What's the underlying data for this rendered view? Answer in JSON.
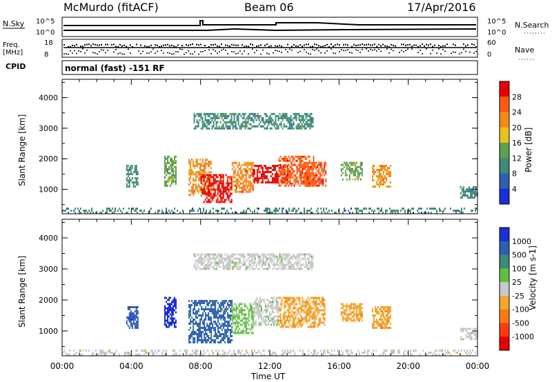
{
  "header": {
    "station": "McMurdo (fitACF)",
    "beam": "Beam 06",
    "date": "17/Apr/2016"
  },
  "top_panels": {
    "nsky_label": "N.Sky",
    "nsearch_label": "N.Search",
    "noise_ticks": [
      "10^5",
      "10^0"
    ],
    "freq_label_1": "Freq.",
    "freq_label_2": "[MHz]",
    "freq_ticks": [
      "18",
      "8"
    ],
    "nave_label": "Nave",
    "nave_ticks": [
      "60",
      "0"
    ],
    "cpid_label": "CPID",
    "cpid_text": "normal (fast) -151 RF"
  },
  "colors": {
    "power_scale": [
      "#1a2fd6",
      "#2e5fb0",
      "#3f8a78",
      "#5fa050",
      "#e8c21c",
      "#f28a18",
      "#ff5a10",
      "#e80000"
    ],
    "velocity_scale": [
      "#1a2fd6",
      "#2e5fb0",
      "#3f8a78",
      "#5fc040",
      "#c8c8c8",
      "#f2a830",
      "#ff7a10",
      "#ff3a10",
      "#e80000"
    ]
  },
  "chart_data": [
    {
      "type": "heatmap",
      "title": "",
      "xlabel": "Time UT",
      "ylabel": "Slant Range [km]",
      "x_ticks": [
        "00:00",
        "04:00",
        "08:00",
        "12:00",
        "16:00",
        "20:00",
        "00:00"
      ],
      "y_ticks": [
        "1000",
        "2000",
        "3000",
        "4000"
      ],
      "xlim_hours": [
        0,
        24
      ],
      "ylim_km": [
        200,
        4600
      ],
      "colorbar": {
        "label": "Power [dB]",
        "ticks": [
          "4",
          "8",
          "12",
          "16",
          "20",
          "24",
          "28"
        ],
        "range": [
          0,
          30
        ]
      },
      "regions": [
        {
          "t0": 0.0,
          "t1": 24.0,
          "r0": 200,
          "r1": 400,
          "value": 8
        },
        {
          "t0": 3.7,
          "t1": 4.4,
          "r0": 1100,
          "r1": 1800,
          "value": 10
        },
        {
          "t0": 5.9,
          "t1": 6.6,
          "r0": 1100,
          "r1": 2100,
          "value": 12
        },
        {
          "t0": 7.3,
          "t1": 8.6,
          "r0": 800,
          "r1": 2000,
          "value": 20
        },
        {
          "t0": 8.0,
          "t1": 9.8,
          "r0": 600,
          "r1": 1500,
          "value": 28
        },
        {
          "t0": 9.8,
          "t1": 11.0,
          "r0": 900,
          "r1": 1900,
          "value": 22
        },
        {
          "t0": 11.0,
          "t1": 13.0,
          "r0": 1200,
          "r1": 1800,
          "value": 28
        },
        {
          "t0": 12.5,
          "t1": 14.5,
          "r0": 1100,
          "r1": 2100,
          "value": 24
        },
        {
          "t0": 14.0,
          "t1": 15.2,
          "r0": 1100,
          "r1": 1900,
          "value": 26
        },
        {
          "t0": 16.1,
          "t1": 17.3,
          "r0": 1300,
          "r1": 1900,
          "value": 14
        },
        {
          "t0": 17.9,
          "t1": 19.0,
          "r0": 1100,
          "r1": 1800,
          "value": 20
        },
        {
          "t0": 23.0,
          "t1": 24.0,
          "r0": 700,
          "r1": 1100,
          "value": 8
        },
        {
          "t0": 7.6,
          "t1": 14.5,
          "r0": 3000,
          "r1": 3500,
          "value": 10
        }
      ]
    },
    {
      "type": "heatmap",
      "title": "",
      "xlabel": "Time UT",
      "ylabel": "Slant Range [km]",
      "x_ticks": [
        "00:00",
        "04:00",
        "08:00",
        "12:00",
        "16:00",
        "20:00",
        "00:00"
      ],
      "y_ticks": [
        "1000",
        "2000",
        "3000",
        "4000"
      ],
      "xlim_hours": [
        0,
        24
      ],
      "ylim_km": [
        200,
        4600
      ],
      "colorbar": {
        "label": "Velocity [m s-1]",
        "ticks": [
          "1000",
          "500",
          "100",
          "25",
          "-25",
          "-100",
          "-500",
          "-1000"
        ],
        "range": [
          -1000,
          1000
        ]
      },
      "regions": [
        {
          "t0": 0.0,
          "t1": 24.0,
          "r0": 200,
          "r1": 400,
          "value": -40
        },
        {
          "t0": 3.7,
          "t1": 4.4,
          "r0": 1100,
          "r1": 1800,
          "value": 700
        },
        {
          "t0": 5.9,
          "t1": 6.6,
          "r0": 1100,
          "r1": 2100,
          "value": 900
        },
        {
          "t0": 7.3,
          "t1": 9.8,
          "r0": 600,
          "r1": 2000,
          "value": 600
        },
        {
          "t0": 9.8,
          "t1": 11.0,
          "r0": 900,
          "r1": 1900,
          "value": 150
        },
        {
          "t0": 11.0,
          "t1": 12.5,
          "r0": 1200,
          "r1": 2100,
          "value": 60
        },
        {
          "t0": 12.5,
          "t1": 15.2,
          "r0": 1100,
          "r1": 2100,
          "value": -300
        },
        {
          "t0": 16.1,
          "t1": 17.3,
          "r0": 1300,
          "r1": 1900,
          "value": -300
        },
        {
          "t0": 17.9,
          "t1": 19.0,
          "r0": 1100,
          "r1": 1800,
          "value": -300
        },
        {
          "t0": 23.0,
          "t1": 24.0,
          "r0": 700,
          "r1": 1100,
          "value": 10
        },
        {
          "t0": 7.6,
          "t1": 14.5,
          "r0": 3000,
          "r1": 3500,
          "value": 40
        }
      ]
    }
  ]
}
